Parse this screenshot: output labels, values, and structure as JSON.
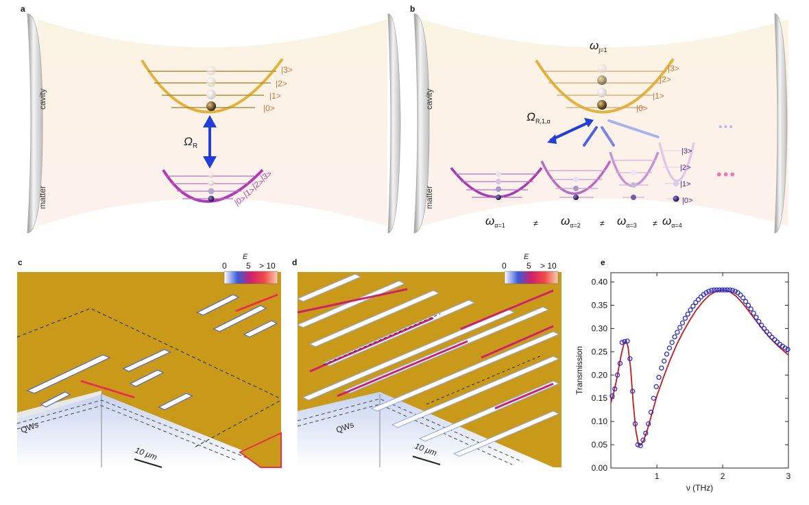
{
  "panels": {
    "a": {
      "letter": "a",
      "cavity_label": "cavity",
      "matter_label": "matter",
      "coupling": "Ω",
      "coupling_sub": "R",
      "cavity_levels": [
        "|0>",
        "|1>",
        "|2>",
        "|3>"
      ],
      "matter_levels": [
        "|0>",
        "|1>",
        "|2>",
        "|3>"
      ]
    },
    "b": {
      "letter": "b",
      "cavity_label": "cavity",
      "matter_label": "matter",
      "cavity_freq": "ω",
      "cavity_freq_sub": "j=1",
      "coupling": "Ω",
      "coupling_sub": "R,1,α",
      "cavity_levels": [
        "|0>",
        "|1>",
        "|2>",
        "|3>"
      ],
      "matter_levels": [
        "|0>",
        "|1>",
        "|2>",
        "|3>"
      ],
      "dots": "•••",
      "freqs": [
        {
          "sym": "ω",
          "sub": "α=1"
        },
        {
          "sym": "ω",
          "sub": "α=2"
        },
        {
          "sym": "ω",
          "sub": "α=3"
        },
        {
          "sym": "ω",
          "sub": "α=4"
        }
      ],
      "neq": "≠"
    },
    "c": {
      "letter": "c",
      "colorbar_title": "Ẽ",
      "colorbar_ticks": [
        "0",
        "5",
        "> 10"
      ],
      "qws": "QWs",
      "scale": "10 μm"
    },
    "d": {
      "letter": "d",
      "colorbar_title": "Ẽ",
      "colorbar_ticks": [
        "0",
        "5",
        "> 10"
      ],
      "qws": "QWs",
      "scale": "10 μm"
    },
    "e": {
      "letter": "e"
    }
  },
  "chart_data": {
    "type": "scatter",
    "title": "",
    "xlabel": "ν (THz)",
    "ylabel": "Transmission",
    "xlim": [
      0.3,
      3.0
    ],
    "ylim": [
      0.0,
      0.42
    ],
    "xticks": [
      "1",
      "2",
      "3"
    ],
    "yticks": [
      "0.00",
      "0.05",
      "0.10",
      "0.15",
      "0.20",
      "0.25",
      "0.30",
      "0.35",
      "0.40"
    ],
    "series": [
      {
        "kind": "markers",
        "color": "#2a2acc",
        "points": [
          [
            0.32,
            0.155
          ],
          [
            0.36,
            0.17
          ],
          [
            0.4,
            0.2
          ],
          [
            0.44,
            0.225
          ],
          [
            0.47,
            0.27
          ],
          [
            0.51,
            0.272
          ],
          [
            0.55,
            0.273
          ],
          [
            0.59,
            0.235
          ],
          [
            0.63,
            0.165
          ],
          [
            0.67,
            0.095
          ],
          [
            0.71,
            0.05
          ],
          [
            0.75,
            0.048
          ],
          [
            0.79,
            0.06
          ],
          [
            0.83,
            0.075
          ],
          [
            0.87,
            0.095
          ],
          [
            0.91,
            0.12
          ],
          [
            0.95,
            0.15
          ],
          [
            0.99,
            0.175
          ],
          [
            1.03,
            0.195
          ],
          [
            1.07,
            0.215
          ],
          [
            1.11,
            0.23
          ],
          [
            1.15,
            0.245
          ],
          [
            1.19,
            0.258
          ],
          [
            1.23,
            0.27
          ],
          [
            1.27,
            0.282
          ],
          [
            1.31,
            0.292
          ],
          [
            1.35,
            0.302
          ],
          [
            1.39,
            0.312
          ],
          [
            1.43,
            0.322
          ],
          [
            1.47,
            0.331
          ],
          [
            1.51,
            0.34
          ],
          [
            1.55,
            0.348
          ],
          [
            1.59,
            0.356
          ],
          [
            1.63,
            0.362
          ],
          [
            1.67,
            0.368
          ],
          [
            1.71,
            0.373
          ],
          [
            1.75,
            0.377
          ],
          [
            1.79,
            0.38
          ],
          [
            1.83,
            0.382
          ],
          [
            1.87,
            0.383
          ],
          [
            1.91,
            0.383
          ],
          [
            1.95,
            0.383
          ],
          [
            1.99,
            0.383
          ],
          [
            2.03,
            0.383
          ],
          [
            2.07,
            0.383
          ],
          [
            2.11,
            0.383
          ],
          [
            2.15,
            0.382
          ],
          [
            2.19,
            0.38
          ],
          [
            2.23,
            0.377
          ],
          [
            2.27,
            0.372
          ],
          [
            2.31,
            0.366
          ],
          [
            2.35,
            0.358
          ],
          [
            2.39,
            0.35
          ],
          [
            2.43,
            0.342
          ],
          [
            2.47,
            0.333
          ],
          [
            2.51,
            0.324
          ],
          [
            2.55,
            0.315
          ],
          [
            2.59,
            0.307
          ],
          [
            2.63,
            0.3
          ],
          [
            2.67,
            0.293
          ],
          [
            2.71,
            0.287
          ],
          [
            2.75,
            0.281
          ],
          [
            2.79,
            0.276
          ],
          [
            2.83,
            0.271
          ],
          [
            2.87,
            0.266
          ],
          [
            2.91,
            0.262
          ],
          [
            2.95,
            0.258
          ],
          [
            2.99,
            0.255
          ]
        ]
      },
      {
        "kind": "line",
        "color": "#c8161d",
        "points": [
          [
            0.3,
            0.14
          ],
          [
            0.34,
            0.16
          ],
          [
            0.38,
            0.185
          ],
          [
            0.42,
            0.215
          ],
          [
            0.46,
            0.245
          ],
          [
            0.5,
            0.268
          ],
          [
            0.53,
            0.272
          ],
          [
            0.56,
            0.262
          ],
          [
            0.6,
            0.215
          ],
          [
            0.64,
            0.14
          ],
          [
            0.68,
            0.08
          ],
          [
            0.72,
            0.05
          ],
          [
            0.76,
            0.05
          ],
          [
            0.8,
            0.06
          ],
          [
            0.85,
            0.08
          ],
          [
            0.9,
            0.105
          ],
          [
            0.95,
            0.13
          ],
          [
            1.0,
            0.155
          ],
          [
            1.1,
            0.195
          ],
          [
            1.2,
            0.232
          ],
          [
            1.3,
            0.265
          ],
          [
            1.4,
            0.293
          ],
          [
            1.5,
            0.318
          ],
          [
            1.6,
            0.34
          ],
          [
            1.7,
            0.358
          ],
          [
            1.8,
            0.372
          ],
          [
            1.9,
            0.38
          ],
          [
            2.0,
            0.383
          ],
          [
            2.1,
            0.38
          ],
          [
            2.2,
            0.37
          ],
          [
            2.3,
            0.355
          ],
          [
            2.4,
            0.337
          ],
          [
            2.5,
            0.318
          ],
          [
            2.6,
            0.3
          ],
          [
            2.7,
            0.283
          ],
          [
            2.8,
            0.268
          ],
          [
            2.9,
            0.255
          ],
          [
            3.0,
            0.243
          ]
        ]
      }
    ]
  }
}
